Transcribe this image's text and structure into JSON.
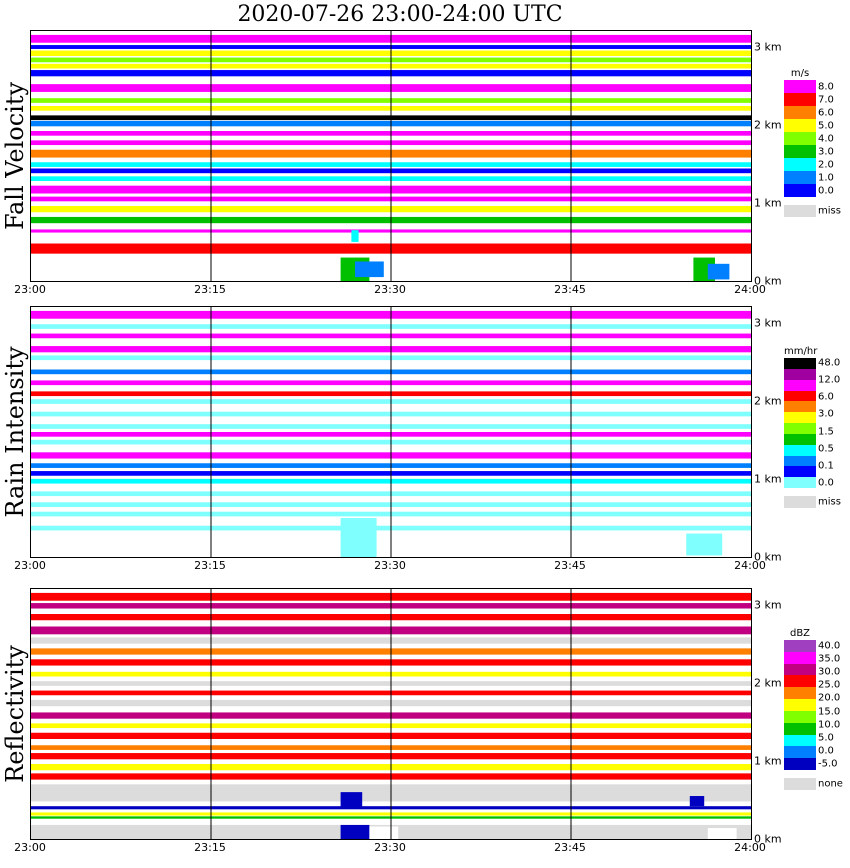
{
  "title": "2020-07-26  23:00-24:00 UTC",
  "x_ticks": [
    "23:00",
    "23:15",
    "23:30",
    "23:45",
    "24:00"
  ],
  "height_ticks": [
    "3 km",
    "2 km",
    "1 km",
    "0 km"
  ],
  "chart_data": [
    {
      "type": "heatmap",
      "ylabel": "Fall Velocity",
      "unit": "m/s",
      "x_range": [
        "23:00",
        "24:00"
      ],
      "y_range_km": [
        0,
        3.2
      ],
      "legend_labels": [
        "8.0",
        "7.0",
        "6.0",
        "5.0",
        "4.0",
        "3.0",
        "2.0",
        "1.0",
        "0.0"
      ],
      "legend_colors": [
        "#ff00ff",
        "#ff0000",
        "#ff8000",
        "#ffff00",
        "#80ff00",
        "#00c000",
        "#00ffff",
        "#0080ff",
        "#0000ff"
      ],
      "missing_label": "miss",
      "bands": [
        {
          "y0": 3.05,
          "y1": 3.15,
          "color": "#ff00ff"
        },
        {
          "y0": 2.97,
          "y1": 3.02,
          "color": "#0000ff"
        },
        {
          "y0": 2.88,
          "y1": 2.95,
          "color": "#ffff00"
        },
        {
          "y0": 2.8,
          "y1": 2.86,
          "color": "#80ff00"
        },
        {
          "y0": 2.72,
          "y1": 2.78,
          "color": "#ffff00"
        },
        {
          "y0": 2.62,
          "y1": 2.7,
          "color": "#0000ff"
        },
        {
          "y0": 2.42,
          "y1": 2.52,
          "color": "#ff00ff"
        },
        {
          "y0": 2.28,
          "y1": 2.34,
          "color": "#80ff00"
        },
        {
          "y0": 2.18,
          "y1": 2.24,
          "color": "#ffff00"
        },
        {
          "y0": 2.06,
          "y1": 2.12,
          "color": "#000000"
        },
        {
          "y0": 1.98,
          "y1": 2.05,
          "color": "#0080ff"
        },
        {
          "y0": 1.86,
          "y1": 1.92,
          "color": "#ff00ff"
        },
        {
          "y0": 1.74,
          "y1": 1.8,
          "color": "#ff00ff"
        },
        {
          "y0": 1.58,
          "y1": 1.68,
          "color": "#ff8000"
        },
        {
          "y0": 1.46,
          "y1": 1.52,
          "color": "#00ffff"
        },
        {
          "y0": 1.38,
          "y1": 1.44,
          "color": "#0000ff"
        },
        {
          "y0": 1.28,
          "y1": 1.34,
          "color": "#00ffff"
        },
        {
          "y0": 1.12,
          "y1": 1.22,
          "color": "#ff00ff"
        },
        {
          "y0": 1.02,
          "y1": 1.08,
          "color": "#ff00ff"
        },
        {
          "y0": 0.88,
          "y1": 0.96,
          "color": "#ffff00"
        },
        {
          "y0": 0.74,
          "y1": 0.82,
          "color": "#00c000"
        },
        {
          "y0": 0.62,
          "y1": 0.66,
          "color": "#ff00ff"
        },
        {
          "y0": 0.35,
          "y1": 0.48,
          "color": "#ff0000"
        }
      ],
      "echoes": [
        {
          "t0": 23.43,
          "t1": 23.47,
          "y0": 0.0,
          "y1": 0.3,
          "color": "#00c000"
        },
        {
          "t0": 23.45,
          "t1": 23.49,
          "y0": 0.05,
          "y1": 0.25,
          "color": "#0080ff"
        },
        {
          "t0": 23.445,
          "t1": 23.455,
          "y0": 0.5,
          "y1": 0.65,
          "color": "#00ffff"
        },
        {
          "t0": 23.92,
          "t1": 23.95,
          "y0": 0.0,
          "y1": 0.3,
          "color": "#00c000"
        },
        {
          "t0": 23.94,
          "t1": 23.97,
          "y0": 0.02,
          "y1": 0.22,
          "color": "#0080ff"
        }
      ]
    },
    {
      "type": "heatmap",
      "ylabel": "Rain Intensity",
      "unit": "mm/hr",
      "x_range": [
        "23:00",
        "24:00"
      ],
      "y_range_km": [
        0,
        3.2
      ],
      "legend_labels": [
        "48.0",
        "12.0",
        "6.0",
        "3.0",
        "1.5",
        "0.5",
        "0.1",
        "0.0"
      ],
      "legend_colors": [
        "#000000",
        "#a000a0",
        "#ff00ff",
        "#ff0000",
        "#ff8000",
        "#ffff00",
        "#80ff00",
        "#00c000",
        "#00ffff",
        "#0080ff",
        "#0000ff",
        "#80ffff"
      ],
      "missing_label": "miss",
      "bands": [
        {
          "y0": 3.05,
          "y1": 3.15,
          "color": "#ff00ff"
        },
        {
          "y0": 2.92,
          "y1": 2.98,
          "color": "#80ffff"
        },
        {
          "y0": 2.8,
          "y1": 2.86,
          "color": "#ff00ff"
        },
        {
          "y0": 2.62,
          "y1": 2.7,
          "color": "#ff00ff"
        },
        {
          "y0": 2.52,
          "y1": 2.58,
          "color": "#80ffff"
        },
        {
          "y0": 2.34,
          "y1": 2.4,
          "color": "#0080ff"
        },
        {
          "y0": 2.2,
          "y1": 2.26,
          "color": "#ff00ff"
        },
        {
          "y0": 2.06,
          "y1": 2.12,
          "color": "#ff0000"
        },
        {
          "y0": 1.96,
          "y1": 2.02,
          "color": "#80ffff"
        },
        {
          "y0": 1.8,
          "y1": 1.86,
          "color": "#80ffff"
        },
        {
          "y0": 1.64,
          "y1": 1.7,
          "color": "#80ffff"
        },
        {
          "y0": 1.54,
          "y1": 1.6,
          "color": "#ff00ff"
        },
        {
          "y0": 1.44,
          "y1": 1.5,
          "color": "#80ffff"
        },
        {
          "y0": 1.26,
          "y1": 1.34,
          "color": "#ff00ff"
        },
        {
          "y0": 1.14,
          "y1": 1.2,
          "color": "#0080ff"
        },
        {
          "y0": 1.04,
          "y1": 1.1,
          "color": "#0000ff"
        },
        {
          "y0": 0.94,
          "y1": 1.0,
          "color": "#00ffff"
        },
        {
          "y0": 0.78,
          "y1": 0.84,
          "color": "#80ffff"
        },
        {
          "y0": 0.64,
          "y1": 0.7,
          "color": "#80ffff"
        },
        {
          "y0": 0.52,
          "y1": 0.58,
          "color": "#80ffff"
        },
        {
          "y0": 0.34,
          "y1": 0.4,
          "color": "#80ffff"
        }
      ],
      "echoes": [
        {
          "t0": 23.43,
          "t1": 23.48,
          "y0": 0.0,
          "y1": 0.5,
          "color": "#80ffff"
        },
        {
          "t0": 23.91,
          "t1": 23.96,
          "y0": 0.02,
          "y1": 0.3,
          "color": "#80ffff"
        }
      ]
    },
    {
      "type": "heatmap",
      "ylabel": "Reflectivity",
      "unit": "dBZ",
      "x_range": [
        "23:00",
        "24:00"
      ],
      "y_range_km": [
        0,
        3.2
      ],
      "legend_labels": [
        "40.0",
        "35.0",
        "30.0",
        "25.0",
        "20.0",
        "15.0",
        "10.0",
        "5.0",
        "0.0",
        "-5.0"
      ],
      "legend_colors": [
        "#a040c0",
        "#ff00ff",
        "#c00080",
        "#ff0000",
        "#ff8000",
        "#ffff00",
        "#80ff00",
        "#00c000",
        "#00ffff",
        "#0080ff",
        "#0000c0"
      ],
      "missing_label": "none",
      "bands": [
        {
          "y0": 3.05,
          "y1": 3.15,
          "color": "#ff0000"
        },
        {
          "y0": 2.95,
          "y1": 3.02,
          "color": "#c00080"
        },
        {
          "y0": 2.8,
          "y1": 2.88,
          "color": "#ff0000"
        },
        {
          "y0": 2.62,
          "y1": 2.72,
          "color": "#c00080"
        },
        {
          "y0": 2.5,
          "y1": 2.58,
          "color": "#dcdcdc"
        },
        {
          "y0": 2.36,
          "y1": 2.44,
          "color": "#ff8000"
        },
        {
          "y0": 2.22,
          "y1": 2.3,
          "color": "#ff0000"
        },
        {
          "y0": 2.08,
          "y1": 2.14,
          "color": "#ffff00"
        },
        {
          "y0": 1.96,
          "y1": 2.02,
          "color": "#dcdcdc"
        },
        {
          "y0": 1.84,
          "y1": 1.9,
          "color": "#ff0000"
        },
        {
          "y0": 1.7,
          "y1": 1.78,
          "color": "#dcdcdc"
        },
        {
          "y0": 1.54,
          "y1": 1.62,
          "color": "#c00080"
        },
        {
          "y0": 1.42,
          "y1": 1.48,
          "color": "#ffff00"
        },
        {
          "y0": 1.28,
          "y1": 1.36,
          "color": "#ff0000"
        },
        {
          "y0": 1.14,
          "y1": 1.2,
          "color": "#ff8000"
        },
        {
          "y0": 1.02,
          "y1": 1.1,
          "color": "#ff0000"
        },
        {
          "y0": 0.88,
          "y1": 0.96,
          "color": "#ffff00"
        },
        {
          "y0": 0.76,
          "y1": 0.84,
          "color": "#ff0000"
        },
        {
          "y0": 0.48,
          "y1": 0.7,
          "color": "#dcdcdc"
        },
        {
          "y0": 0.38,
          "y1": 0.42,
          "color": "#0000c0"
        },
        {
          "y0": 0.3,
          "y1": 0.34,
          "color": "#ffff00"
        },
        {
          "y0": 0.26,
          "y1": 0.29,
          "color": "#00c000"
        },
        {
          "y0": 0.0,
          "y1": 0.18,
          "color": "#dcdcdc"
        }
      ],
      "echoes": [
        {
          "t0": 23.43,
          "t1": 23.46,
          "y0": 0.4,
          "y1": 0.6,
          "color": "#0000c0"
        },
        {
          "t0": 23.43,
          "t1": 23.47,
          "y0": 0.0,
          "y1": 0.18,
          "color": "#0000c0"
        },
        {
          "t0": 23.47,
          "t1": 23.51,
          "y0": 0.0,
          "y1": 0.16,
          "color": "#ffffff"
        },
        {
          "t0": 23.915,
          "t1": 23.935,
          "y0": 0.42,
          "y1": 0.55,
          "color": "#0000c0"
        },
        {
          "t0": 23.94,
          "t1": 23.98,
          "y0": 0.0,
          "y1": 0.14,
          "color": "#ffffff"
        }
      ]
    }
  ]
}
